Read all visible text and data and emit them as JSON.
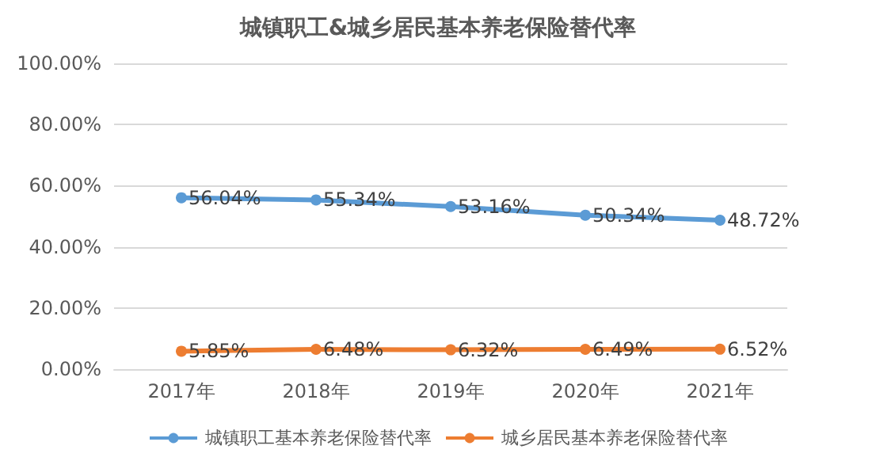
{
  "chart_data": {
    "type": "line",
    "title": "城镇职工&城乡居民基本养老保险替代率",
    "categories": [
      "2017年",
      "2018年",
      "2019年",
      "2020年",
      "2021年"
    ],
    "series": [
      {
        "name": "城镇职工基本养老保险替代率",
        "color": "#5b9bd5",
        "values": [
          56.04,
          55.34,
          53.16,
          50.34,
          48.72
        ],
        "value_labels": [
          "56.04%",
          "55.34%",
          "53.16%",
          "50.34%",
          "48.72%"
        ]
      },
      {
        "name": "城乡居民基本养老保险替代率",
        "color": "#ed7d31",
        "values": [
          5.85,
          6.48,
          6.32,
          6.49,
          6.52
        ],
        "value_labels": [
          "5.85%",
          "6.48%",
          "6.32%",
          "6.49%",
          "6.52%"
        ]
      }
    ],
    "ylim": [
      0,
      100
    ],
    "yticks": [
      {
        "value": 0,
        "label": "0.00%"
      },
      {
        "value": 20,
        "label": "20.00%"
      },
      {
        "value": 40,
        "label": "40.00%"
      },
      {
        "value": 60,
        "label": "60.00%"
      },
      {
        "value": 80,
        "label": "80.00%"
      },
      {
        "value": 100,
        "label": "100.00%"
      }
    ],
    "grid": "y",
    "legend": "bottom",
    "marker": "circle",
    "line_style": "solid"
  }
}
